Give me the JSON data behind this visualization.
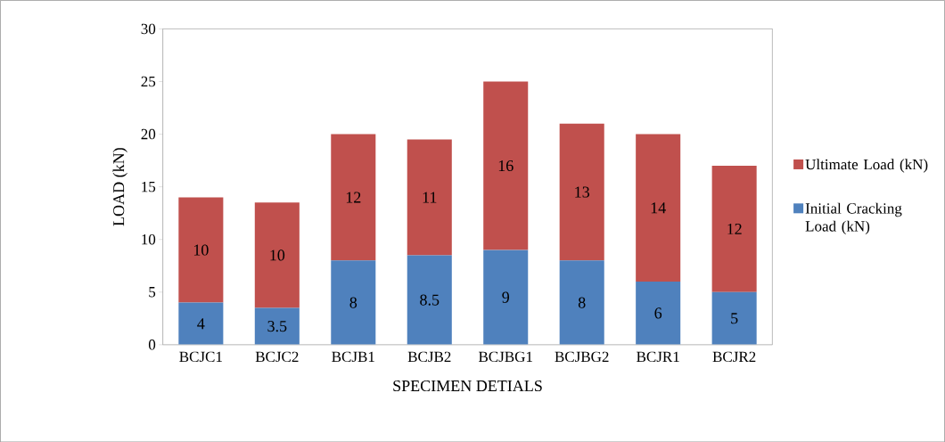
{
  "chart_data": {
    "type": "bar",
    "stacked": true,
    "xlabel": "SPECIMEN DETIALS",
    "ylabel": "LOAD (kN)",
    "categories": [
      "BCJC1",
      "BCJC2",
      "BCJB1",
      "BCJB2",
      "BCJBG1",
      "BCJBG2",
      "BCJR1",
      "BCJR2"
    ],
    "series": [
      {
        "name": "Initial Cracking Load (kN)",
        "color": "#4f81bd",
        "values": [
          4,
          3.5,
          8,
          8.5,
          9,
          8,
          6,
          5
        ]
      },
      {
        "name": "Ultimate Load (kN)",
        "color": "#c0504d",
        "values": [
          10,
          10,
          12,
          11,
          16,
          13,
          14,
          12
        ]
      }
    ],
    "ylim": [
      0,
      30
    ],
    "yticks": [
      0,
      5,
      10,
      15,
      20,
      25,
      30
    ],
    "data_labels": true,
    "legend": "right",
    "grid": false
  }
}
